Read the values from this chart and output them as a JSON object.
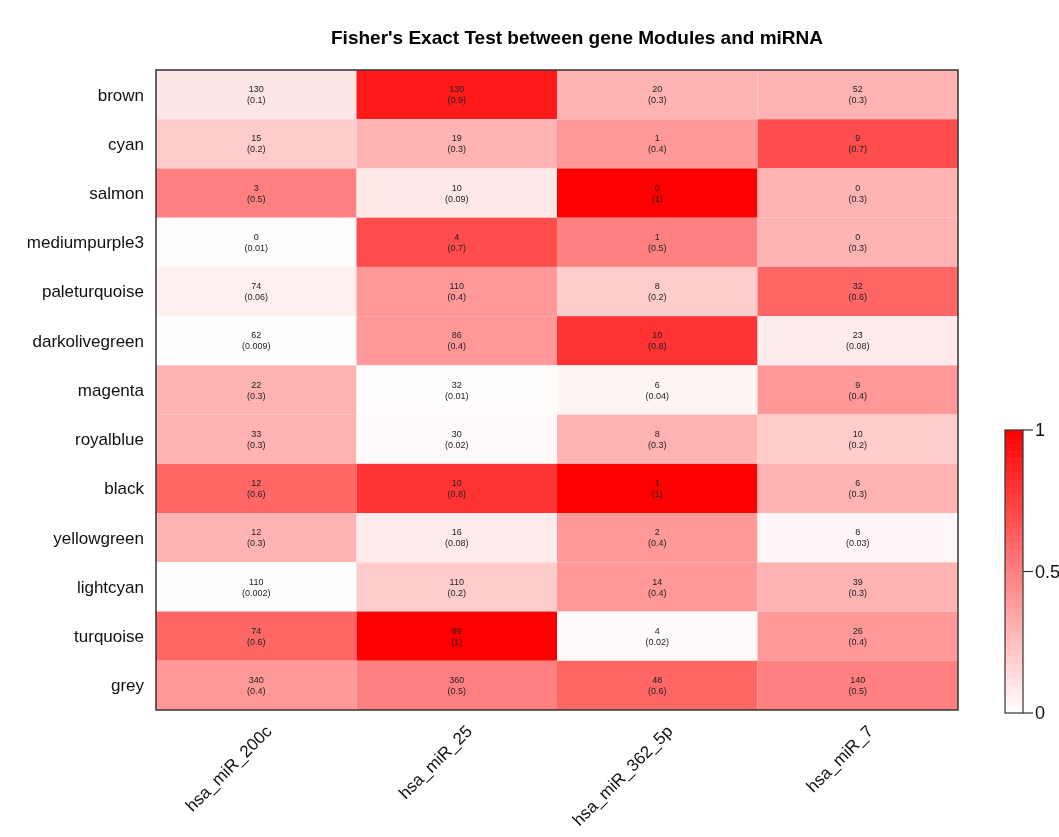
{
  "chart_data": {
    "type": "heatmap",
    "title": "Fisher's Exact Test between gene Modules and miRNA",
    "categories": [
      "hsa_miR_200c",
      "hsa_miR_25",
      "hsa_miR_362_5p",
      "hsa_miR_7"
    ],
    "y_categories": [
      "brown",
      "cyan",
      "salmon",
      "mediumpurple3",
      "paleturquoise",
      "darkolivegreen",
      "magenta",
      "royalblue",
      "black",
      "yellowgreen",
      "lightcyan",
      "turquoise",
      "grey"
    ],
    "cells": [
      [
        0.1,
        0.9,
        0.3,
        0.3
      ],
      [
        0.2,
        0.3,
        0.4,
        0.7
      ],
      [
        0.5,
        0.09,
        1,
        0.3
      ],
      [
        0.01,
        0.7,
        0.5,
        0.3
      ],
      [
        0.06,
        0.4,
        0.2,
        0.6
      ],
      [
        0.009,
        0.4,
        0.8,
        0.08
      ],
      [
        0.3,
        0.01,
        0.04,
        0.4
      ],
      [
        0.3,
        0.02,
        0.3,
        0.2
      ],
      [
        0.6,
        0.8,
        1,
        0.3
      ],
      [
        0.3,
        0.08,
        0.4,
        0.03
      ],
      [
        0.002,
        0.2,
        0.4,
        0.3
      ],
      [
        0.6,
        1,
        0.02,
        0.4
      ],
      [
        0.4,
        0.5,
        0.6,
        0.5
      ]
    ],
    "cell_labels": [
      [
        "130\n(0.1)",
        "130\n(0.9)",
        "20\n(0.3)",
        "52\n(0.3)"
      ],
      [
        " 15\n(0.2)",
        "19\n(0.3)",
        "1\n(0.4)",
        "9\n(0.7)"
      ],
      [
        "3\n(0.5)",
        "10\n(0.09)",
        "0\n(1)",
        "0\n(0.3)"
      ],
      [
        "0\n(0.01)",
        "4\n(0.7)",
        "1\n(0.5)",
        "0\n(0.3)"
      ],
      [
        "74\n(0.06)",
        "110\n(0.4)",
        "8\n(0.2)",
        "32\n(0.6)"
      ],
      [
        "62\n(0.009)",
        "86\n(0.4)",
        "10\n(0.8)",
        "23\n(0.08)"
      ],
      [
        "22\n(0.3)",
        "32\n(0.01)",
        "6\n(0.04)",
        "9\n(0.4)"
      ],
      [
        "33\n(0.3)",
        "30\n(0.02)",
        "8\n(0.3)",
        "10\n(0.2)"
      ],
      [
        "12\n(0.6)",
        "10\n(0.8)",
        "1\n(1)",
        "6\n(0.3)"
      ],
      [
        "12\n(0.3)",
        "16\n(0.08)",
        "2\n(0.4)",
        "8\n(0.03)"
      ],
      [
        "110\n(0.002)",
        "110\n(0.2)",
        "14\n(0.4)",
        "39\n(0.3)"
      ],
      [
        "74\n(0.6)",
        "89\n(1)",
        "4\n(0.02)",
        "26\n(0.4)"
      ],
      [
        "340\n(0.4)",
        "360\n(0.5)",
        "48\n(0.6)",
        "140\n(0.5)"
      ]
    ],
    "clim": [
      0,
      1
    ],
    "cticks": [
      0,
      0.5,
      1
    ]
  }
}
